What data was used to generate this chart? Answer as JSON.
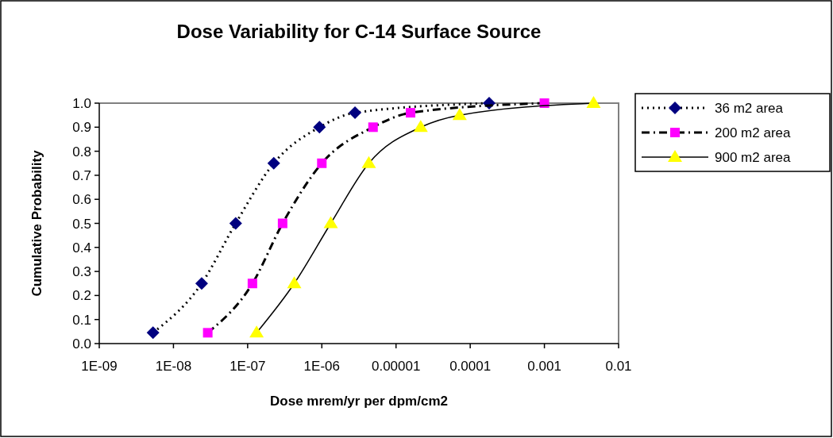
{
  "chart_data": {
    "type": "line",
    "title": "Dose Variability for C-14 Surface Source",
    "xlabel": "Dose mrem/yr per dpm/cm2",
    "ylabel": "Cumulative Probability",
    "log": "x",
    "grid": false,
    "legend": "right",
    "xlim": [
      1e-09,
      0.01
    ],
    "xticks": [
      {
        "value": 1e-09,
        "label": "1E-09"
      },
      {
        "value": 1e-08,
        "label": "1E-08"
      },
      {
        "value": 1e-07,
        "label": "1E-07"
      },
      {
        "value": 1e-06,
        "label": "1E-06"
      },
      {
        "value": 1e-05,
        "label": "0.00001"
      },
      {
        "value": 0.0001,
        "label": "0.0001"
      },
      {
        "value": 0.001,
        "label": "0.001"
      },
      {
        "value": 0.01,
        "label": "0.01"
      }
    ],
    "ylim": [
      0,
      1
    ],
    "yticks": [
      {
        "value": 0,
        "label": "0.0"
      },
      {
        "value": 0.1,
        "label": "0.1"
      },
      {
        "value": 0.2,
        "label": "0.2"
      },
      {
        "value": 0.3,
        "label": "0.3"
      },
      {
        "value": 0.4,
        "label": "0.4"
      },
      {
        "value": 0.5,
        "label": "0.5"
      },
      {
        "value": 0.6,
        "label": "0.6"
      },
      {
        "value": 0.7,
        "label": "0.7"
      },
      {
        "value": 0.8,
        "label": "0.8"
      },
      {
        "value": 0.9,
        "label": "0.9"
      },
      {
        "value": 1,
        "label": "1.0"
      }
    ],
    "series": [
      {
        "name": "36 m2 area",
        "color": "#000080",
        "marker": "diamond",
        "line_style": "dotted",
        "x": [
          5.3e-09,
          2.4e-08,
          6.9e-08,
          2.25e-07,
          9.3e-07,
          2.8e-06,
          0.00018
        ],
        "values": [
          0.045,
          0.25,
          0.5,
          0.75,
          0.9,
          0.96,
          1.0
        ]
      },
      {
        "name": "200 m2 area",
        "color": "#ff00ff",
        "marker": "square",
        "line_style": "dashdot",
        "x": [
          2.9e-08,
          1.16e-07,
          2.96e-07,
          1e-06,
          4.9e-06,
          1.57e-05,
          0.001
        ],
        "values": [
          0.045,
          0.25,
          0.5,
          0.75,
          0.9,
          0.96,
          1.0
        ]
      },
      {
        "name": "900 m2 area",
        "color": "#ffff00",
        "marker": "triangle",
        "line_style": "solid",
        "x": [
          1.32e-07,
          4.25e-07,
          1.32e-06,
          4.3e-06,
          2.15e-05,
          7.2e-05,
          0.0046
        ],
        "values": [
          0.045,
          0.25,
          0.5,
          0.75,
          0.9,
          0.95,
          1.0
        ]
      }
    ]
  }
}
